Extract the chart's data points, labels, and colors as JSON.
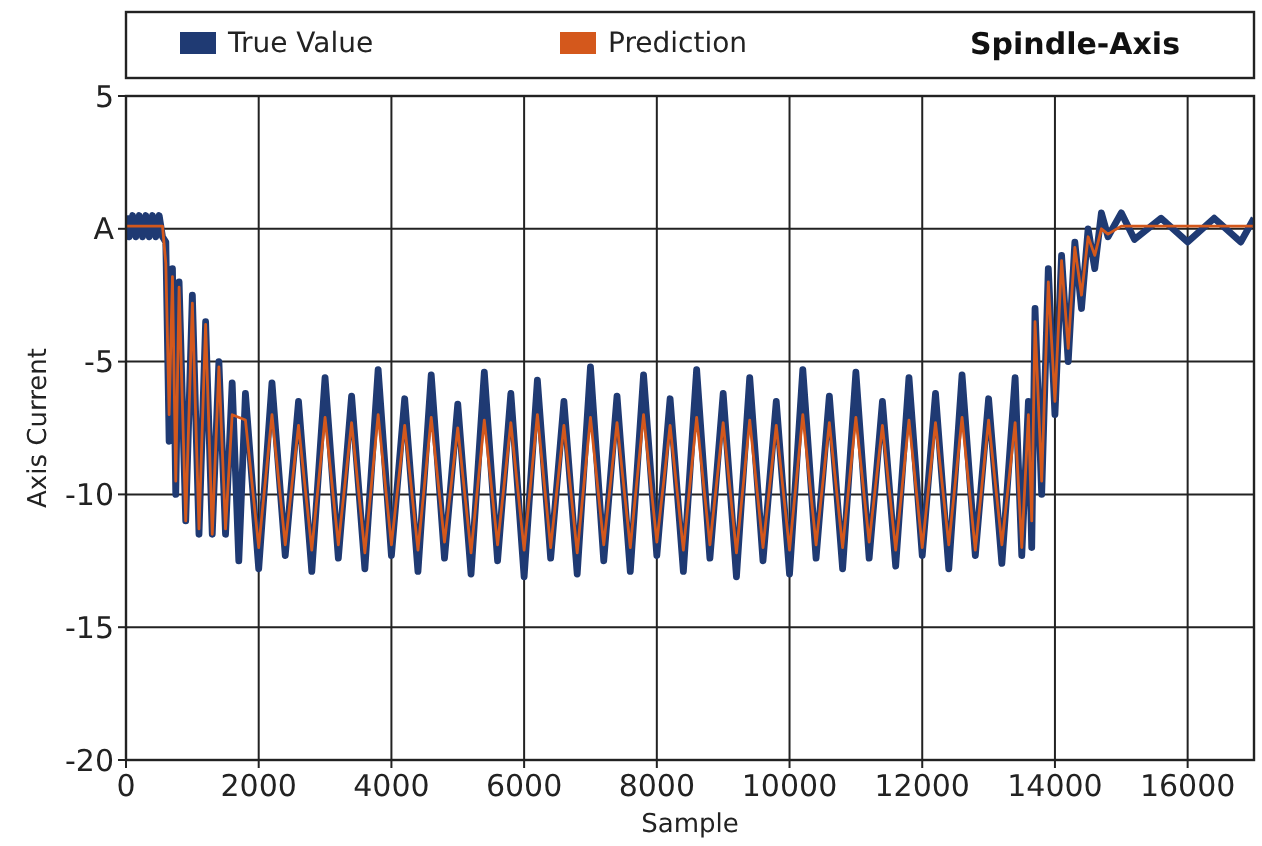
{
  "chart_data": {
    "type": "line",
    "title": "Spindle-Axis",
    "xlabel": "Sample",
    "ylabel": "Axis Current",
    "xlim": [
      0,
      17000
    ],
    "ylim": [
      -20,
      5
    ],
    "xticks": [
      0,
      2000,
      4000,
      6000,
      8000,
      10000,
      12000,
      14000,
      16000
    ],
    "yticks": [
      -20,
      -15,
      -10,
      -5,
      {
        "value": 0,
        "label": "A"
      },
      5
    ],
    "grid": true,
    "legend": "top",
    "line_style": "solid",
    "marker": "none",
    "series": [
      {
        "name": "True Value",
        "color": "#1f3a73",
        "x": [
          0,
          50,
          100,
          150,
          200,
          250,
          300,
          350,
          400,
          450,
          500,
          550,
          600,
          650,
          700,
          750,
          800,
          900,
          1000,
          1100,
          1200,
          1300,
          1400,
          1500,
          1600,
          1700,
          1800,
          2000,
          2200,
          2400,
          2600,
          2800,
          3000,
          3200,
          3400,
          3600,
          3800,
          4000,
          4200,
          4400,
          4600,
          4800,
          5000,
          5200,
          5400,
          5600,
          5800,
          6000,
          6200,
          6400,
          6600,
          6800,
          7000,
          7200,
          7400,
          7600,
          7800,
          8000,
          8200,
          8400,
          8600,
          8800,
          9000,
          9200,
          9400,
          9600,
          9800,
          10000,
          10200,
          10400,
          10600,
          10800,
          11000,
          11200,
          11400,
          11600,
          11800,
          12000,
          12200,
          12400,
          12600,
          12800,
          13000,
          13200,
          13400,
          13500,
          13600,
          13650,
          13700,
          13800,
          13900,
          14000,
          14100,
          14200,
          14300,
          14400,
          14500,
          14600,
          14700,
          14800,
          15000,
          15200,
          15600,
          16000,
          16400,
          16800,
          17000
        ],
        "values": [
          0.5,
          -0.3,
          0.5,
          -0.3,
          0.5,
          -0.3,
          0.5,
          -0.3,
          0.5,
          -0.3,
          0.5,
          -0.3,
          -0.5,
          -8,
          -1.5,
          -10,
          -2,
          -11,
          -2.5,
          -11.5,
          -3.5,
          -11.5,
          -5,
          -11.5,
          -5.8,
          -12.5,
          -6.2,
          -12.8,
          -5.8,
          -12.3,
          -6.5,
          -12.9,
          -5.6,
          -12.4,
          -6.3,
          -12.8,
          -5.3,
          -12.3,
          -6.4,
          -12.9,
          -5.5,
          -12.4,
          -6.6,
          -13,
          -5.4,
          -12.5,
          -6.2,
          -13.1,
          -5.7,
          -12.4,
          -6.5,
          -13,
          -5.2,
          -12.5,
          -6.3,
          -12.9,
          -5.5,
          -12.3,
          -6.4,
          -12.9,
          -5.3,
          -12.4,
          -6.2,
          -13.1,
          -5.6,
          -12.5,
          -6.5,
          -13,
          -5.3,
          -12.4,
          -6.3,
          -12.8,
          -5.4,
          -12.4,
          -6.5,
          -12.7,
          -5.6,
          -12.3,
          -6.2,
          -12.8,
          -5.5,
          -12.3,
          -6.4,
          -12.6,
          -5.6,
          -12.3,
          -6.5,
          -12,
          -3,
          -10,
          -1.5,
          -7,
          -1,
          -5,
          -0.5,
          -3,
          0,
          -1.5,
          0.6,
          -0.3,
          0.6,
          -0.4,
          0.4,
          -0.5,
          0.4,
          -0.5,
          0.4
        ]
      },
      {
        "name": "Prediction",
        "color": "#d4581c",
        "x": [
          0,
          550,
          600,
          650,
          700,
          750,
          800,
          900,
          1000,
          1100,
          1200,
          1300,
          1400,
          1500,
          1600,
          1800,
          2000,
          2200,
          2400,
          2600,
          2800,
          3000,
          3200,
          3400,
          3600,
          3800,
          4000,
          4200,
          4400,
          4600,
          4800,
          5000,
          5200,
          5400,
          5600,
          5800,
          6000,
          6200,
          6400,
          6600,
          6800,
          7000,
          7200,
          7400,
          7600,
          7800,
          8000,
          8200,
          8400,
          8600,
          8800,
          9000,
          9200,
          9400,
          9600,
          9800,
          10000,
          10200,
          10400,
          10600,
          10800,
          11000,
          11200,
          11400,
          11600,
          11800,
          12000,
          12200,
          12400,
          12600,
          12800,
          13000,
          13200,
          13400,
          13500,
          13600,
          13650,
          13700,
          13800,
          13900,
          14000,
          14100,
          14200,
          14300,
          14400,
          14500,
          14600,
          14700,
          14800,
          15000,
          17000
        ],
        "values": [
          0.1,
          0.1,
          -1.3,
          -7,
          -1.8,
          -9.5,
          -2.2,
          -11,
          -2.8,
          -11.3,
          -3.6,
          -11.5,
          -5.2,
          -11.3,
          -7,
          -7.2,
          -12,
          -7,
          -11.9,
          -7.4,
          -12.1,
          -7.1,
          -11.9,
          -7.3,
          -12.2,
          -7,
          -11.9,
          -7.4,
          -12.1,
          -7.1,
          -11.8,
          -7.5,
          -12.2,
          -7.2,
          -11.9,
          -7.3,
          -12.1,
          -7,
          -12,
          -7.4,
          -12.2,
          -7.1,
          -11.9,
          -7.3,
          -12,
          -7,
          -11.8,
          -7.4,
          -12.1,
          -7.1,
          -11.9,
          -7.3,
          -12.2,
          -7.2,
          -12,
          -7.4,
          -12.1,
          -7,
          -11.9,
          -7.3,
          -12,
          -7.1,
          -11.8,
          -7.4,
          -12.1,
          -7.2,
          -12,
          -7.3,
          -11.9,
          -7.1,
          -12.1,
          -7.2,
          -11.9,
          -7.3,
          -12,
          -7,
          -11,
          -3.5,
          -9.5,
          -2,
          -6.5,
          -1.2,
          -4.5,
          -0.7,
          -2.5,
          -0.3,
          -1,
          0,
          -0.2,
          0.1,
          0.1
        ]
      }
    ]
  }
}
